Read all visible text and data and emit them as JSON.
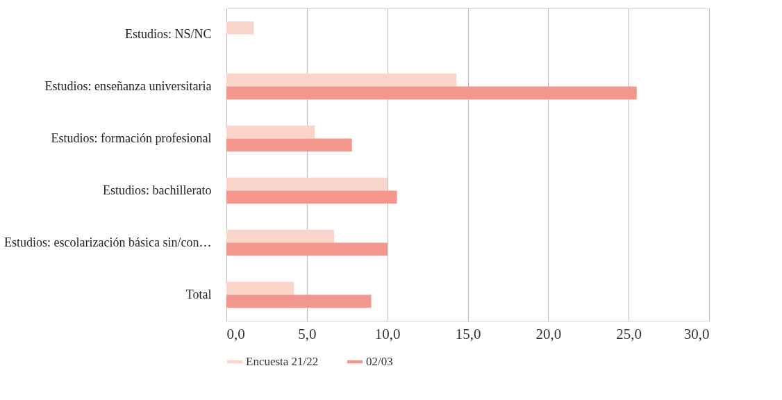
{
  "chart_data": {
    "type": "bar",
    "orientation": "horizontal",
    "categories": [
      "Estudios: NS/NC",
      "Estudios: enseñanza universitaria",
      "Estudios: formación profesional",
      "Estudios: bachillerato",
      "Estudios: escolarización básica sin/con…",
      "Total"
    ],
    "series": [
      {
        "name": "Encuesta 21/22",
        "color": "#f9d5cc",
        "values": [
          1.7,
          14.3,
          5.5,
          10.0,
          6.7,
          4.2
        ]
      },
      {
        "name": "02/03",
        "color": "#f2968e",
        "values": [
          null,
          25.5,
          7.8,
          10.6,
          10.0,
          9.0
        ]
      }
    ],
    "xlim": [
      0,
      30
    ],
    "xticks": [
      {
        "value": 0,
        "label": "0,0"
      },
      {
        "value": 5,
        "label": "5,0"
      },
      {
        "value": 10,
        "label": "10,0"
      },
      {
        "value": 15,
        "label": "15,0"
      },
      {
        "value": 20,
        "label": "20,0"
      },
      {
        "value": 25,
        "label": "25,0"
      },
      {
        "value": 30,
        "label": "30,0"
      }
    ],
    "grid": "x",
    "legend": "bottom"
  }
}
